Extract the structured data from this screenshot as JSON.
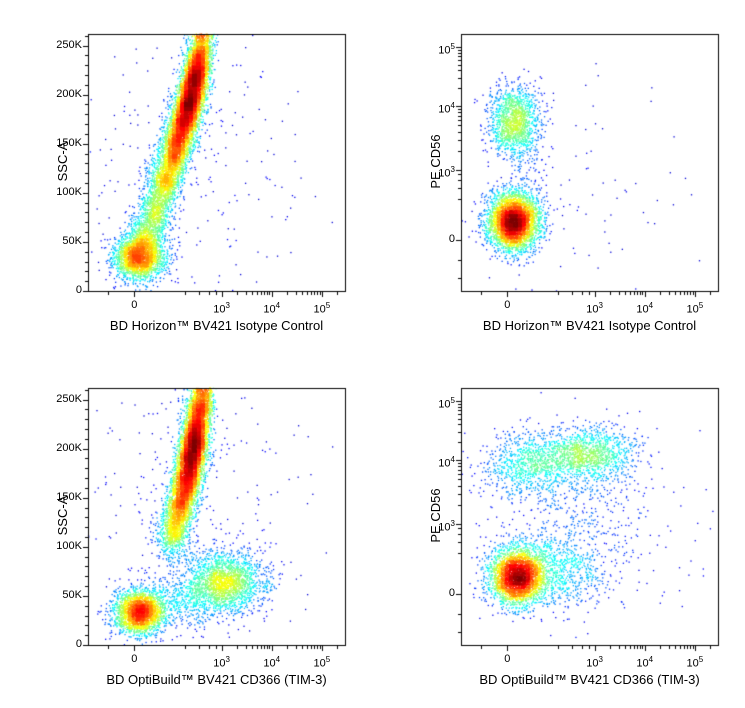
{
  "page": {
    "background": "#ffffff",
    "description": "2x2 grid of flow cytometry pseudocolor density dot plots"
  },
  "colors": {
    "axis": "#000000",
    "background": "#ffffff",
    "colormap": "jet (blue low density to red high density)"
  },
  "chart_data": [
    {
      "id": "ssc-vs-bv421-isotype",
      "type": "scatter",
      "subtype": "flow-cytometry-density-dot-plot",
      "xlabel": "BD Horizon™ BV421 Isotype Control",
      "ylabel": "SSC-A",
      "x_scale": "biexponential",
      "y_scale": "linear",
      "ylim": [
        0,
        262144
      ],
      "point_coloring": "local density, jet colormap",
      "cluster_coords": "fraction of plot box, origin bottom-left",
      "x_ticks": [
        {
          "value": 0,
          "label": "0",
          "pos": 0.18
        },
        {
          "value": 1000,
          "label": "10",
          "sup": "3",
          "pos": 0.52
        },
        {
          "value": 10000,
          "label": "10",
          "sup": "4",
          "pos": 0.715
        },
        {
          "value": 100000,
          "label": "10",
          "sup": "5",
          "pos": 0.91
        }
      ],
      "y_ticks": [
        {
          "value": 0,
          "label": "0",
          "pos": 0.0
        },
        {
          "value": 50000,
          "label": "50K",
          "pos": 0.191
        },
        {
          "value": 100000,
          "label": "100K",
          "pos": 0.382
        },
        {
          "value": 150000,
          "label": "150K",
          "pos": 0.573
        },
        {
          "value": 200000,
          "label": "200K",
          "pos": 0.764
        },
        {
          "value": 250000,
          "label": "250K",
          "pos": 0.955
        }
      ],
      "clusters": [
        {
          "desc": "lymphocytes, SSC ~30K, BV421 ~0",
          "cx": 0.2,
          "cy": 0.13,
          "sx": 0.05,
          "sy": 0.042,
          "n": 2200
        },
        {
          "cx": 0.225,
          "cy": 0.22,
          "sx": 0.038,
          "sy": 0.045,
          "n": 600
        },
        {
          "cx": 0.265,
          "cy": 0.32,
          "sx": 0.033,
          "sy": 0.05,
          "n": 700
        },
        {
          "cx": 0.3,
          "cy": 0.43,
          "sx": 0.03,
          "sy": 0.05,
          "n": 900
        },
        {
          "cx": 0.335,
          "cy": 0.53,
          "sx": 0.028,
          "sy": 0.05,
          "n": 1100
        },
        {
          "cx": 0.362,
          "cy": 0.62,
          "sx": 0.027,
          "sy": 0.05,
          "n": 1400
        },
        {
          "cx": 0.388,
          "cy": 0.71,
          "sx": 0.026,
          "sy": 0.05,
          "n": 1700
        },
        {
          "desc": "granulocyte arm core, SSC 150K-200K",
          "cx": 0.412,
          "cy": 0.8,
          "sx": 0.025,
          "sy": 0.05,
          "n": 1700
        },
        {
          "cx": 0.43,
          "cy": 0.88,
          "sx": 0.024,
          "sy": 0.05,
          "n": 1200
        },
        {
          "cx": 0.445,
          "cy": 0.96,
          "sx": 0.023,
          "sy": 0.05,
          "n": 600
        },
        {
          "desc": "sparse background",
          "cx": 0.42,
          "cy": 0.5,
          "sx": 0.22,
          "sy": 0.3,
          "n": 280
        }
      ]
    },
    {
      "id": "pe-cd56-vs-bv421-isotype",
      "type": "scatter",
      "subtype": "flow-cytometry-density-dot-plot",
      "xlabel": "BD Horizon™ BV421 Isotype Control",
      "ylabel": "PE CD56",
      "x_scale": "biexponential",
      "y_scale": "biexponential",
      "point_coloring": "local density, jet colormap",
      "cluster_coords": "fraction of plot box, origin bottom-left",
      "x_ticks": [
        {
          "value": 0,
          "label": "0",
          "pos": 0.18
        },
        {
          "value": 1000,
          "label": "10",
          "sup": "3",
          "pos": 0.52
        },
        {
          "value": 10000,
          "label": "10",
          "sup": "4",
          "pos": 0.715
        },
        {
          "value": 100000,
          "label": "10",
          "sup": "5",
          "pos": 0.91
        }
      ],
      "y_ticks": [
        {
          "value": 0,
          "label": "0",
          "pos": 0.2
        },
        {
          "value": 1000,
          "label": "10",
          "sup": "3",
          "pos": 0.47
        },
        {
          "value": 10000,
          "label": "10",
          "sup": "4",
          "pos": 0.72
        },
        {
          "value": 100000,
          "label": "10",
          "sup": "5",
          "pos": 0.95
        }
      ],
      "clusters": [
        {
          "desc": "CD56+ NK cells, PE ~5x10^3, BV421 ~0",
          "cx": 0.21,
          "cy": 0.66,
          "sx": 0.048,
          "sy": 0.068,
          "n": 1400
        },
        {
          "desc": "CD56- cells, PE ~0, BV421 ~0",
          "cx": 0.205,
          "cy": 0.27,
          "sx": 0.048,
          "sy": 0.055,
          "n": 4000
        },
        {
          "desc": "bridge between populations",
          "cx": 0.24,
          "cy": 0.46,
          "sx": 0.06,
          "sy": 0.09,
          "n": 120
        },
        {
          "desc": "sparse background",
          "cx": 0.45,
          "cy": 0.4,
          "sx": 0.22,
          "sy": 0.22,
          "n": 90
        }
      ]
    },
    {
      "id": "ssc-vs-bv421-tim3",
      "type": "scatter",
      "subtype": "flow-cytometry-density-dot-plot",
      "xlabel": "BD OptiBuild™ BV421 CD366 (TIM-3)",
      "ylabel": "SSC-A",
      "x_scale": "biexponential",
      "y_scale": "linear",
      "ylim": [
        0,
        262144
      ],
      "point_coloring": "local density, jet colormap",
      "cluster_coords": "fraction of plot box, origin bottom-left",
      "x_ticks": [
        {
          "value": 0,
          "label": "0",
          "pos": 0.18
        },
        {
          "value": 1000,
          "label": "10",
          "sup": "3",
          "pos": 0.52
        },
        {
          "value": 10000,
          "label": "10",
          "sup": "4",
          "pos": 0.715
        },
        {
          "value": 100000,
          "label": "10",
          "sup": "5",
          "pos": 0.91
        }
      ],
      "y_ticks": [
        {
          "value": 0,
          "label": "0",
          "pos": 0.0
        },
        {
          "value": 50000,
          "label": "50K",
          "pos": 0.191
        },
        {
          "value": 100000,
          "label": "100K",
          "pos": 0.382
        },
        {
          "value": 150000,
          "label": "150K",
          "pos": 0.573
        },
        {
          "value": 200000,
          "label": "200K",
          "pos": 0.764
        },
        {
          "value": 250000,
          "label": "250K",
          "pos": 0.955
        }
      ],
      "clusters": [
        {
          "desc": "lymphocytes, SSC ~30K, BV421 ~0",
          "cx": 0.2,
          "cy": 0.125,
          "sx": 0.05,
          "sy": 0.042,
          "n": 2300
        },
        {
          "cx": 0.33,
          "cy": 0.43,
          "sx": 0.03,
          "sy": 0.05,
          "n": 600
        },
        {
          "cx": 0.355,
          "cy": 0.53,
          "sx": 0.028,
          "sy": 0.05,
          "n": 1000
        },
        {
          "cx": 0.38,
          "cy": 0.63,
          "sx": 0.027,
          "sy": 0.05,
          "n": 1400
        },
        {
          "desc": "granulocyte arm core, SSC 150K-200K",
          "cx": 0.402,
          "cy": 0.73,
          "sx": 0.026,
          "sy": 0.05,
          "n": 1700
        },
        {
          "cx": 0.42,
          "cy": 0.82,
          "sx": 0.025,
          "sy": 0.05,
          "n": 1500
        },
        {
          "cx": 0.435,
          "cy": 0.91,
          "sx": 0.024,
          "sy": 0.045,
          "n": 900
        },
        {
          "cx": 0.447,
          "cy": 0.97,
          "sx": 0.023,
          "sy": 0.04,
          "n": 400
        },
        {
          "desc": "TIM-3+ myeloid, SSC 40K-85K, BV421 ~10^3",
          "cx": 0.53,
          "cy": 0.245,
          "sx": 0.075,
          "sy": 0.058,
          "n": 2000
        },
        {
          "desc": "bridge toward TIM-3+ cluster",
          "cx": 0.36,
          "cy": 0.17,
          "sx": 0.09,
          "sy": 0.05,
          "n": 500
        },
        {
          "desc": "sparse background",
          "cx": 0.42,
          "cy": 0.5,
          "sx": 0.22,
          "sy": 0.28,
          "n": 300
        }
      ]
    },
    {
      "id": "pe-cd56-vs-bv421-tim3",
      "type": "scatter",
      "subtype": "flow-cytometry-density-dot-plot",
      "xlabel": "BD OptiBuild™ BV421 CD366 (TIM-3)",
      "ylabel": "PE CD56",
      "x_scale": "biexponential",
      "y_scale": "biexponential",
      "point_coloring": "local density, jet colormap",
      "cluster_coords": "fraction of plot box, origin bottom-left",
      "x_ticks": [
        {
          "value": 0,
          "label": "0",
          "pos": 0.18
        },
        {
          "value": 1000,
          "label": "10",
          "sup": "3",
          "pos": 0.52
        },
        {
          "value": 10000,
          "label": "10",
          "sup": "4",
          "pos": 0.715
        },
        {
          "value": 100000,
          "label": "10",
          "sup": "5",
          "pos": 0.91
        }
      ],
      "y_ticks": [
        {
          "value": 0,
          "label": "0",
          "pos": 0.2
        },
        {
          "value": 1000,
          "label": "10",
          "sup": "3",
          "pos": 0.47
        },
        {
          "value": 10000,
          "label": "10",
          "sup": "4",
          "pos": 0.72
        },
        {
          "value": 100000,
          "label": "10",
          "sup": "5",
          "pos": 0.95
        }
      ],
      "clusters": [
        {
          "desc": "CD56- TIM-3 low, PE ~0",
          "cx": 0.22,
          "cy": 0.265,
          "sx": 0.055,
          "sy": 0.055,
          "n": 3200
        },
        {
          "desc": "CD56- TIM-3 intermediate tail",
          "cx": 0.37,
          "cy": 0.29,
          "sx": 0.1,
          "sy": 0.07,
          "n": 700
        },
        {
          "desc": "CD56+ TIM-3-",
          "cx": 0.25,
          "cy": 0.7,
          "sx": 0.085,
          "sy": 0.06,
          "n": 650
        },
        {
          "desc": "CD56+ TIM-3+, PE ~10^4, BV421 ~10^3",
          "cx": 0.5,
          "cy": 0.745,
          "sx": 0.085,
          "sy": 0.05,
          "n": 1050
        },
        {
          "cx": 0.38,
          "cy": 0.72,
          "sx": 0.11,
          "sy": 0.06,
          "n": 380
        },
        {
          "desc": "intermediate scatter",
          "cx": 0.42,
          "cy": 0.5,
          "sx": 0.16,
          "sy": 0.12,
          "n": 330
        },
        {
          "desc": "sparse background",
          "cx": 0.45,
          "cy": 0.45,
          "sx": 0.24,
          "sy": 0.24,
          "n": 220
        }
      ]
    }
  ]
}
